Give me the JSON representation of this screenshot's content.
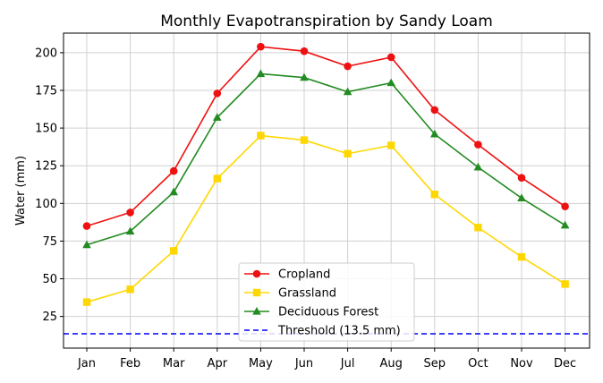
{
  "chart_data": {
    "type": "line",
    "title": "Monthly Evapotranspiration by Sandy Loam",
    "xlabel": "",
    "ylabel": "Water (mm)",
    "categories": [
      "Jan",
      "Feb",
      "Mar",
      "Apr",
      "May",
      "Jun",
      "Jul",
      "Aug",
      "Sep",
      "Oct",
      "Nov",
      "Dec"
    ],
    "ylim": [
      4,
      213
    ],
    "yticks": [
      25,
      50,
      75,
      100,
      125,
      150,
      175,
      200
    ],
    "grid": true,
    "legend_position": "bottom-center",
    "series": [
      {
        "name": "Cropland",
        "color": "#ee1111",
        "marker": "circle",
        "values": [
          85,
          94,
          121.5,
          173,
          204,
          201,
          191,
          197,
          162,
          139,
          117,
          98
        ]
      },
      {
        "name": "Grassland",
        "color": "#ffd700",
        "marker": "square",
        "values": [
          34.5,
          43,
          68.5,
          116.5,
          145,
          142,
          133,
          138.5,
          106,
          84,
          64.5,
          46.5
        ]
      },
      {
        "name": "Deciduous Forest",
        "color": "#228b22",
        "marker": "triangle",
        "values": [
          72.5,
          81.5,
          107.5,
          157,
          186,
          183.5,
          174,
          180,
          146,
          124,
          103.5,
          85.5
        ]
      }
    ],
    "threshold": {
      "name": "Threshold (13.5 mm)",
      "value": 13.5,
      "color": "#0000ff",
      "style": "dashed"
    }
  }
}
